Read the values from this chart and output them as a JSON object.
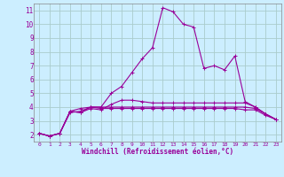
{
  "xlabel": "Windchill (Refroidissement éolien,°C)",
  "bg_color": "#cceeff",
  "line_color": "#990099",
  "grid_color": "#aacccc",
  "xlim": [
    -0.5,
    23.5
  ],
  "ylim": [
    1.5,
    11.5
  ],
  "xticks": [
    0,
    1,
    2,
    3,
    4,
    5,
    6,
    7,
    8,
    9,
    10,
    11,
    12,
    13,
    14,
    15,
    16,
    17,
    18,
    19,
    20,
    21,
    22,
    23
  ],
  "yticks": [
    2,
    3,
    4,
    5,
    6,
    7,
    8,
    9,
    10,
    11
  ],
  "series": [
    [
      2.1,
      1.9,
      2.1,
      3.7,
      3.6,
      4.0,
      4.0,
      5.0,
      5.5,
      6.5,
      7.5,
      8.3,
      11.2,
      10.9,
      10.0,
      9.8,
      6.8,
      7.0,
      6.7,
      7.7,
      4.4,
      4.0,
      3.5,
      3.1
    ],
    [
      2.1,
      1.9,
      2.1,
      3.7,
      3.6,
      3.9,
      3.8,
      4.2,
      4.5,
      4.5,
      4.4,
      4.3,
      4.3,
      4.3,
      4.3,
      4.3,
      4.3,
      4.3,
      4.3,
      4.3,
      4.3,
      4.0,
      3.5,
      3.1
    ],
    [
      2.1,
      1.9,
      2.1,
      3.6,
      3.7,
      4.0,
      4.0,
      4.0,
      4.0,
      4.0,
      4.0,
      4.0,
      4.0,
      4.0,
      4.0,
      4.0,
      4.0,
      4.0,
      4.0,
      4.0,
      4.0,
      3.9,
      3.5,
      3.1
    ],
    [
      2.1,
      1.9,
      2.1,
      3.7,
      3.9,
      4.0,
      3.9,
      3.9,
      3.9,
      3.9,
      3.9,
      3.9,
      3.9,
      3.9,
      3.9,
      3.9,
      3.9,
      3.9,
      3.9,
      3.9,
      3.8,
      3.8,
      3.4,
      3.1
    ]
  ]
}
